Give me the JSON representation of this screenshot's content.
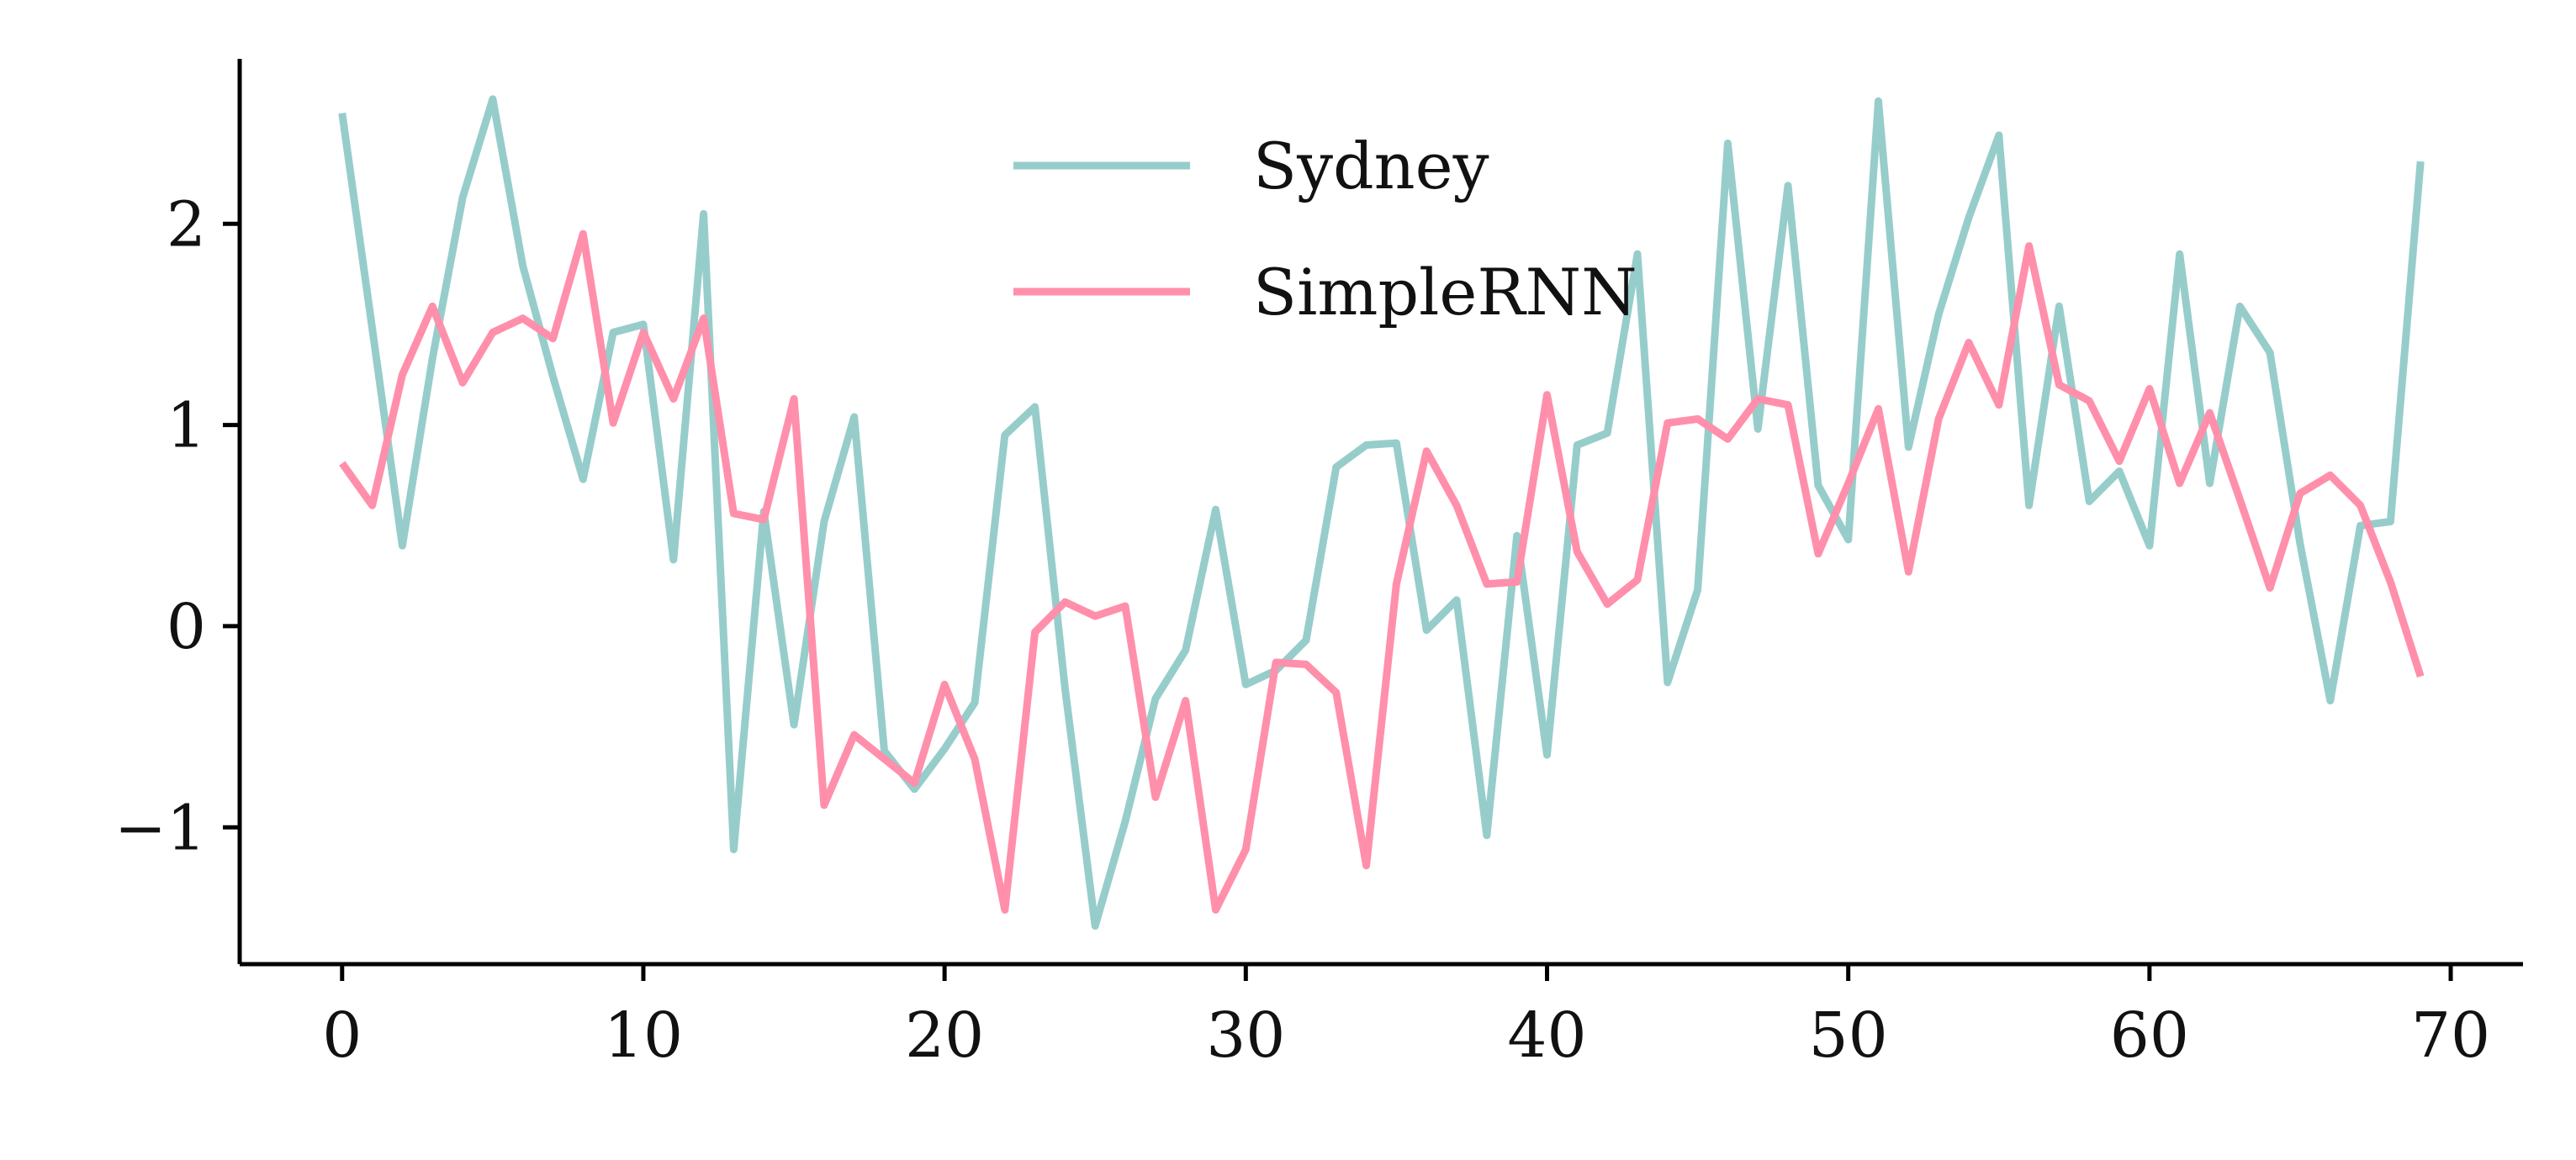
{
  "chart_data": {
    "type": "line",
    "title": "",
    "xlabel": "",
    "ylabel": "",
    "xlim": [
      -3.4,
      72.4
    ],
    "ylim": [
      -1.68,
      2.82
    ],
    "xticks": [
      0,
      10,
      20,
      30,
      40,
      50,
      60,
      70
    ],
    "yticks": [
      -1,
      0,
      1,
      2
    ],
    "xtick_labels": [
      "0",
      "10",
      "20",
      "30",
      "40",
      "50",
      "60",
      "70"
    ],
    "ytick_labels": [
      "−1",
      "0",
      "1",
      "2"
    ],
    "grid": false,
    "legend_position": "top-center",
    "x": [
      0,
      1,
      2,
      3,
      4,
      5,
      6,
      7,
      8,
      9,
      10,
      11,
      12,
      13,
      14,
      15,
      16,
      17,
      18,
      19,
      20,
      21,
      22,
      23,
      24,
      25,
      26,
      27,
      28,
      29,
      30,
      31,
      32,
      33,
      34,
      35,
      36,
      37,
      38,
      39,
      40,
      41,
      42,
      43,
      44,
      45,
      46,
      47,
      48,
      49,
      50,
      51,
      52,
      53,
      54,
      55,
      56,
      57,
      58,
      59,
      60,
      61,
      62,
      63,
      64,
      65,
      66,
      67,
      68,
      69
    ],
    "series": [
      {
        "name": "Sydney",
        "color": "#96cdcb",
        "values": [
          2.55,
          1.48,
          0.4,
          1.33,
          2.13,
          2.62,
          1.79,
          1.24,
          0.73,
          1.46,
          1.5,
          0.33,
          2.05,
          -1.11,
          0.57,
          -0.49,
          0.52,
          1.04,
          -0.62,
          -0.81,
          -0.61,
          -0.38,
          0.95,
          1.09,
          -0.31,
          -1.49,
          -0.97,
          -0.36,
          -0.12,
          0.58,
          -0.29,
          -0.22,
          -0.07,
          0.79,
          0.9,
          0.91,
          -0.02,
          0.13,
          -1.04,
          0.45,
          -0.64,
          0.9,
          0.96,
          1.85,
          -0.28,
          0.18,
          2.4,
          0.98,
          2.19,
          0.7,
          0.43,
          2.61,
          0.89,
          1.55,
          2.03,
          2.44,
          0.6,
          1.59,
          0.62,
          0.77,
          0.4,
          1.85,
          0.71,
          1.59,
          1.36,
          0.41,
          -0.37,
          0.5,
          0.52,
          2.31
        ]
      },
      {
        "name": "SimpleRNN",
        "color": "#ff8fab",
        "values": [
          0.81,
          0.6,
          1.25,
          1.59,
          1.21,
          1.46,
          1.53,
          1.43,
          1.95,
          1.01,
          1.46,
          1.13,
          1.53,
          0.56,
          0.53,
          1.13,
          -0.89,
          -0.54,
          -0.66,
          -0.78,
          -0.29,
          -0.66,
          -1.41,
          -0.03,
          0.12,
          0.05,
          0.1,
          -0.85,
          -0.37,
          -1.41,
          -1.11,
          -0.18,
          -0.19,
          -0.33,
          -1.19,
          0.21,
          0.87,
          0.6,
          0.21,
          0.22,
          1.15,
          0.37,
          0.11,
          0.23,
          1.01,
          1.03,
          0.93,
          1.13,
          1.1,
          0.36,
          0.71,
          1.08,
          0.27,
          1.03,
          1.41,
          1.1,
          1.89,
          1.2,
          1.12,
          0.82,
          1.18,
          0.71,
          1.06,
          0.63,
          0.19,
          0.66,
          0.75,
          0.6,
          0.22,
          -0.25
        ]
      }
    ]
  }
}
